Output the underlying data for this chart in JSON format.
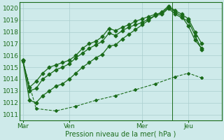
{
  "title": "Pression niveau de la mer( hPa )",
  "background_color": "#ceeaea",
  "grid_color": "#aacece",
  "line_color": "#1a6b1a",
  "ylim": [
    1010.5,
    1020.5
  ],
  "yticks": [
    1011,
    1012,
    1013,
    1014,
    1015,
    1016,
    1017,
    1018,
    1019,
    1020
  ],
  "xtick_labels": [
    "Mar",
    "Ven",
    "Mer",
    "Jeu"
  ],
  "xtick_positions": [
    0,
    7,
    18,
    25
  ],
  "xlim": [
    -0.5,
    30
  ],
  "line1_x": [
    0,
    1,
    2,
    3,
    4,
    5,
    6,
    7,
    8,
    9,
    10,
    11,
    12,
    13,
    14,
    15,
    16,
    17,
    18,
    19,
    20,
    21,
    22,
    23,
    24,
    25,
    26,
    27
  ],
  "line1_y": [
    1015.6,
    1013.3,
    1013.8,
    1014.5,
    1015.0,
    1015.2,
    1015.4,
    1015.6,
    1016.0,
    1016.6,
    1017.0,
    1017.2,
    1017.6,
    1018.3,
    1018.1,
    1018.4,
    1018.6,
    1018.9,
    1019.1,
    1019.3,
    1019.5,
    1019.6,
    1020.1,
    1019.7,
    1019.3,
    1018.5,
    1017.3,
    1016.6
  ],
  "line2_x": [
    0,
    1,
    2,
    3,
    4,
    5,
    6,
    7,
    8,
    9,
    10,
    11,
    12,
    13,
    14,
    15,
    16,
    17,
    18,
    19,
    20,
    21,
    22,
    23,
    24,
    25,
    26,
    27
  ],
  "line2_y": [
    1015.6,
    1013.0,
    1013.2,
    1014.0,
    1014.4,
    1014.8,
    1015.0,
    1015.3,
    1015.8,
    1016.2,
    1016.6,
    1016.9,
    1017.2,
    1017.9,
    1017.7,
    1018.1,
    1018.4,
    1018.6,
    1018.8,
    1019.1,
    1019.4,
    1019.5,
    1020.0,
    1019.5,
    1019.2,
    1018.9,
    1017.7,
    1016.5
  ],
  "line3_x": [
    0,
    1,
    2,
    3,
    4,
    5,
    6,
    7,
    8,
    9,
    10,
    11,
    12,
    13,
    14,
    15,
    16,
    17,
    18,
    19,
    20,
    21,
    22,
    23,
    24,
    25,
    26,
    27
  ],
  "line3_y": [
    1015.6,
    1012.2,
    1012.0,
    1012.6,
    1013.0,
    1013.4,
    1013.6,
    1014.0,
    1014.5,
    1015.0,
    1015.4,
    1015.8,
    1016.1,
    1016.8,
    1016.9,
    1017.4,
    1017.8,
    1018.2,
    1018.6,
    1019.0,
    1019.4,
    1019.7,
    1020.2,
    1019.8,
    1019.5,
    1019.1,
    1018.0,
    1017.0
  ],
  "line4_x": [
    0,
    2,
    5,
    8,
    11,
    14,
    17,
    20,
    23,
    25,
    27
  ],
  "line4_y": [
    1015.5,
    1011.5,
    1011.3,
    1011.7,
    1012.2,
    1012.6,
    1013.1,
    1013.6,
    1014.2,
    1014.5,
    1014.1
  ],
  "vline_x": 22.5,
  "marker_style": "D",
  "marker_size": 2.5,
  "line_width": 0.9
}
